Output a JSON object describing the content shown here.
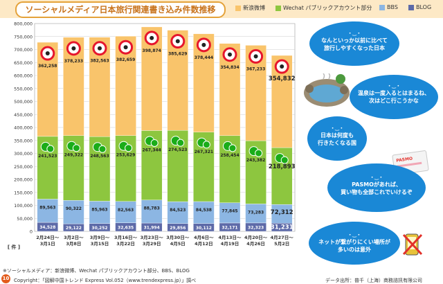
{
  "header": {
    "title": "ソーシャルメディア日本旅行関連書き込み件数推移",
    "legend": [
      {
        "label": "新浪微博",
        "color": "#f9c46b"
      },
      {
        "label": "Wechat パブリックアカウント部分",
        "color": "#8dc63f"
      },
      {
        "label": "BBS",
        "color": "#8cb6e3"
      },
      {
        "label": "BLOG",
        "color": "#5d6aa8"
      }
    ]
  },
  "chart_data": {
    "type": "bar",
    "stacked": true,
    "title": "ソーシャルメディア日本旅行関連書き込み件数推移",
    "unit_label": "[ 件 ]",
    "ylim": [
      0,
      800000
    ],
    "yticks": [
      0,
      50000,
      100000,
      150000,
      200000,
      250000,
      300000,
      350000,
      400000,
      450000,
      500000,
      550000,
      600000,
      650000,
      700000,
      750000,
      800000
    ],
    "ytick_labels": [
      "0",
      "50,000",
      "100,000",
      "150,000",
      "200,000",
      "250,000",
      "300,000",
      "350,000",
      "400,000",
      "450,000",
      "500,000",
      "550,000",
      "600,000",
      "650,000",
      "700,000",
      "750,000",
      "800,000"
    ],
    "categories": [
      [
        "2月24日～",
        "3月1日"
      ],
      [
        "3月2日～",
        "3月8日"
      ],
      [
        "3月9日～",
        "3月15日"
      ],
      [
        "3月16日～",
        "3月22日"
      ],
      [
        "3月23日～",
        "3月29日"
      ],
      [
        "3月30日～",
        "4月5日"
      ],
      [
        "4月6日～",
        "4月12日"
      ],
      [
        "4月13日～",
        "4月19日"
      ],
      [
        "4月20日～",
        "4月26日"
      ],
      [
        "4月27日～",
        "5月2日"
      ]
    ],
    "series": [
      {
        "name": "BLOG",
        "color": "#5d6aa8",
        "values": [
          34528,
          29122,
          30252,
          32635,
          31994,
          29856,
          30112,
          32171,
          32323,
          31231
        ],
        "labels": [
          "34,528",
          "29,122",
          "30,252",
          "32,635",
          "31,994",
          "29,856",
          "30,112",
          "32,171",
          "32,323",
          "31,231"
        ]
      },
      {
        "name": "BBS",
        "color": "#8cb6e3",
        "values": [
          89563,
          90322,
          85963,
          82563,
          88783,
          84523,
          84538,
          77845,
          73283,
          72312
        ],
        "labels": [
          "89,563",
          "90,322",
          "85,963",
          "82,563",
          "88,783",
          "84,523",
          "84,538",
          "77,845",
          "73,283",
          "72,312"
        ]
      },
      {
        "name": "Wechat パブリックアカウント部分",
        "color": "#8dc63f",
        "values": [
          241523,
          249322,
          248563,
          253629,
          267344,
          274523,
          267321,
          258454,
          243382,
          218893
        ],
        "labels": [
          "241,523",
          "249,322",
          "248,563",
          "253,629",
          "267,344",
          "274,523",
          "267,321",
          "258,454",
          "243,382",
          "218,893"
        ]
      },
      {
        "name": "新浪微博",
        "color": "#f9c46b",
        "values": [
          362258,
          378233,
          382563,
          382659,
          398874,
          385629,
          378444,
          354834,
          367233,
          354832
        ],
        "labels": [
          "362,258",
          "378,233",
          "382,563",
          "382,659",
          "398,874",
          "385,629",
          "378,444",
          "354,834",
          "367,233",
          "354,832"
        ]
      }
    ]
  },
  "bubbles": [
    {
      "face": "・‿・",
      "text": "なんといっか以前に比べて\n旅行しやすくなった日本"
    },
    {
      "face": "・‿・",
      "text": "温泉は一度入るとはまるね、\n次はどこ行こうかな"
    },
    {
      "face": "・‿・",
      "text": "日本は何度も\n行きたくなる国"
    },
    {
      "face": "・‿・",
      "text": "PASMOがあれば、\n買い物も全部これでいけるぞ"
    },
    {
      "face": "・‿・",
      "text": "ネットが繋がりにくい場所が\n多いのは意外"
    }
  ],
  "card_label": "PASMO",
  "footer": {
    "page_number": "10",
    "note": "※ソーシャルメディア：新浪微博、Wechat パブリックアカウント部分、BBS、BLOG",
    "copyright": "Copyright：「図解中国トレンド Express Vol.052（www.trendexpress.jp）」調べ",
    "source": "データ出所：普千（上海）商務諮訊有限公司"
  }
}
